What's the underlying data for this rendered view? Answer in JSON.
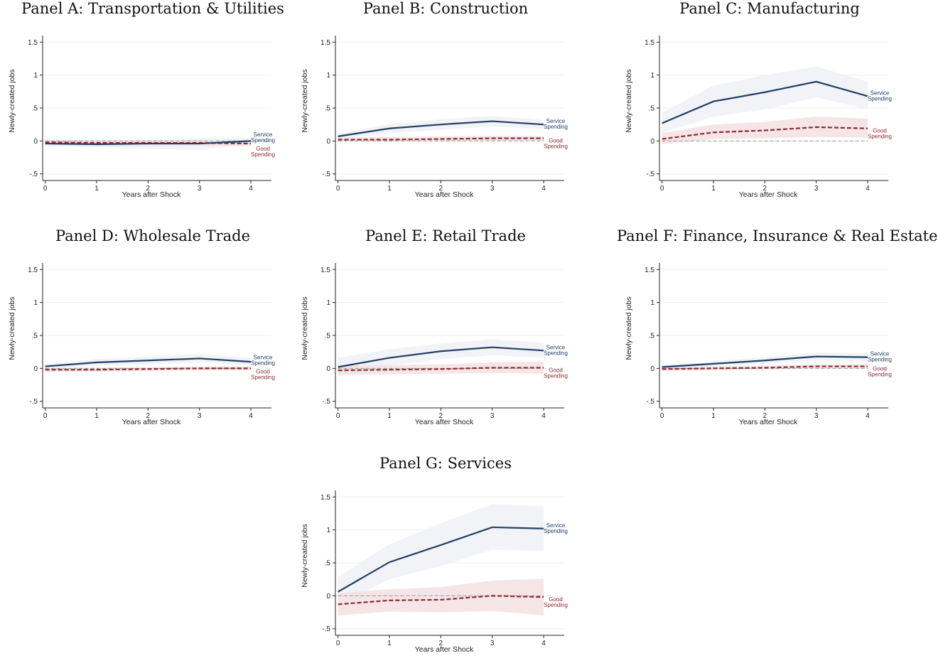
{
  "colors": {
    "service": "#1f3f66",
    "good": "#8c2a33",
    "service_band": "#eef1f5",
    "good_band": "#f3e1e3",
    "grid": "#eeeeee",
    "zero_line": "#999999"
  },
  "chart_data": [
    {
      "type": "line",
      "title": "Panel A: Transportation & Utilities",
      "xlabel": "Years after Shock",
      "ylabel": "Newly-created jobs",
      "x": [
        0,
        1,
        2,
        3,
        4
      ],
      "xticks": [
        "0",
        "1",
        "2",
        "3",
        "4"
      ],
      "yticks": [
        ".5 neg",
        "0",
        ".5",
        "1",
        "1.5"
      ],
      "ytick_labels": [
        "-.5",
        "0",
        ".5",
        "1",
        "1.5"
      ],
      "ylim": [
        -0.6,
        1.6
      ],
      "grid": true,
      "series": [
        {
          "name": "Service Spending",
          "label_lines": [
            "Service",
            "Spending"
          ],
          "style": "solid",
          "values": [
            -0.04,
            -0.05,
            -0.04,
            -0.04,
            0.0
          ],
          "ci_lower": [
            -0.07,
            -0.1,
            -0.12,
            -0.14,
            -0.04
          ],
          "ci_upper": [
            -0.01,
            0.0,
            0.02,
            0.04,
            0.04
          ]
        },
        {
          "name": "Good Spending",
          "label_lines": [
            "Good",
            "Spending"
          ],
          "style": "dashed",
          "values": [
            -0.02,
            -0.03,
            -0.03,
            -0.03,
            -0.04
          ],
          "ci_lower": [
            -0.06,
            -0.07,
            -0.07,
            -0.07,
            -0.08
          ],
          "ci_upper": [
            0.02,
            0.01,
            0.01,
            0.01,
            0.0
          ]
        }
      ]
    },
    {
      "type": "line",
      "title": "Panel B: Construction",
      "xlabel": "Years after Shock",
      "ylabel": "Newly-created jobs",
      "x": [
        0,
        1,
        2,
        3,
        4
      ],
      "xticks": [
        "0",
        "1",
        "2",
        "3",
        "4"
      ],
      "ytick_labels": [
        "-.5",
        "0",
        ".5",
        "1",
        "1.5"
      ],
      "ylim": [
        -0.6,
        1.6
      ],
      "grid": true,
      "series": [
        {
          "name": "Service Spending",
          "label_lines": [
            "Service",
            "Spending"
          ],
          "style": "solid",
          "values": [
            0.07,
            0.19,
            0.25,
            0.3,
            0.25
          ],
          "ci_lower": [
            0.03,
            0.12,
            0.17,
            0.22,
            0.18
          ],
          "ci_upper": [
            0.11,
            0.26,
            0.33,
            0.38,
            0.32
          ]
        },
        {
          "name": "Good Spending",
          "label_lines": [
            "Good",
            "Spending"
          ],
          "style": "dashed",
          "values": [
            0.02,
            0.02,
            0.03,
            0.04,
            0.04
          ],
          "ci_lower": [
            0.0,
            -0.01,
            0.0,
            0.0,
            0.0
          ],
          "ci_upper": [
            0.05,
            0.06,
            0.07,
            0.08,
            0.08
          ]
        }
      ]
    },
    {
      "type": "line",
      "title": "Panel C: Manufacturing",
      "xlabel": "Years after Shock",
      "ylabel": "Newly-created jobs",
      "x": [
        0,
        1,
        2,
        3,
        4
      ],
      "xticks": [
        "0",
        "1",
        "2",
        "3",
        "4"
      ],
      "ytick_labels": [
        "-.5",
        "0",
        ".5",
        "1",
        "1.5"
      ],
      "ylim": [
        -0.6,
        1.6
      ],
      "grid": true,
      "series": [
        {
          "name": "Service Spending",
          "label_lines": [
            "Service",
            "Spending"
          ],
          "style": "solid",
          "values": [
            0.27,
            0.6,
            0.74,
            0.9,
            0.68
          ],
          "ci_lower": [
            0.12,
            0.37,
            0.48,
            0.66,
            0.48
          ],
          "ci_upper": [
            0.43,
            0.84,
            1.0,
            1.13,
            0.9
          ]
        },
        {
          "name": "Good Spending",
          "label_lines": [
            "Good",
            "Spending"
          ],
          "style": "dashed",
          "values": [
            0.03,
            0.13,
            0.16,
            0.21,
            0.19
          ],
          "ci_lower": [
            -0.05,
            0.03,
            0.04,
            0.06,
            0.05
          ],
          "ci_upper": [
            0.12,
            0.25,
            0.29,
            0.37,
            0.34
          ]
        }
      ]
    },
    {
      "type": "line",
      "title": "Panel D: Wholesale Trade",
      "xlabel": "Years after Shock",
      "ylabel": "Newly-created jobs",
      "x": [
        0,
        1,
        2,
        3,
        4
      ],
      "xticks": [
        "0",
        "1",
        "2",
        "3",
        "4"
      ],
      "ytick_labels": [
        "-.5",
        "0",
        ".5",
        "1",
        "1.5"
      ],
      "ylim": [
        -0.6,
        1.6
      ],
      "grid": true,
      "series": [
        {
          "name": "Service Spending",
          "label_lines": [
            "Service",
            "Spending"
          ],
          "style": "solid",
          "values": [
            0.03,
            0.09,
            0.12,
            0.15,
            0.1
          ],
          "ci_lower": [
            0.0,
            0.04,
            0.06,
            0.09,
            0.05
          ],
          "ci_upper": [
            0.06,
            0.14,
            0.18,
            0.22,
            0.16
          ]
        },
        {
          "name": "Good Spending",
          "label_lines": [
            "Good",
            "Spending"
          ],
          "style": "dashed",
          "values": [
            -0.02,
            -0.02,
            -0.01,
            0.0,
            0.0
          ],
          "ci_lower": [
            -0.05,
            -0.05,
            -0.04,
            -0.03,
            -0.03
          ],
          "ci_upper": [
            0.01,
            0.01,
            0.02,
            0.03,
            0.03
          ]
        }
      ]
    },
    {
      "type": "line",
      "title": "Panel E: Retail Trade",
      "xlabel": "Years after Shock",
      "ylabel": "Newly-created jobs",
      "x": [
        0,
        1,
        2,
        3,
        4
      ],
      "xticks": [
        "0",
        "1",
        "2",
        "3",
        "4"
      ],
      "ytick_labels": [
        "-.5",
        "0",
        ".5",
        "1",
        "1.5"
      ],
      "ylim": [
        -0.6,
        1.6
      ],
      "grid": true,
      "series": [
        {
          "name": "Service Spending",
          "label_lines": [
            "Service",
            "Spending"
          ],
          "style": "solid",
          "values": [
            0.02,
            0.16,
            0.26,
            0.32,
            0.27
          ],
          "ci_lower": [
            -0.12,
            0.04,
            0.14,
            0.2,
            0.16
          ],
          "ci_upper": [
            0.16,
            0.29,
            0.38,
            0.44,
            0.39
          ]
        },
        {
          "name": "Good Spending",
          "label_lines": [
            "Good",
            "Spending"
          ],
          "style": "dashed",
          "values": [
            -0.03,
            -0.02,
            -0.01,
            0.01,
            0.01
          ],
          "ci_lower": [
            -0.1,
            -0.09,
            -0.08,
            -0.07,
            -0.08
          ],
          "ci_upper": [
            0.04,
            0.05,
            0.06,
            0.09,
            0.1
          ]
        }
      ]
    },
    {
      "type": "line",
      "title": "Panel F: Finance, Insurance & Real Estate",
      "xlabel": "Years after Shock",
      "ylabel": "Newly-created jobs",
      "x": [
        0,
        1,
        2,
        3,
        4
      ],
      "xticks": [
        "0",
        "1",
        "2",
        "3",
        "4"
      ],
      "ytick_labels": [
        "-.5",
        "0",
        ".5",
        "1",
        "1.5"
      ],
      "ylim": [
        -0.6,
        1.6
      ],
      "grid": true,
      "series": [
        {
          "name": "Service Spending",
          "label_lines": [
            "Service",
            "Spending"
          ],
          "style": "solid",
          "values": [
            0.02,
            0.07,
            0.12,
            0.18,
            0.17
          ],
          "ci_lower": [
            -0.01,
            0.03,
            0.07,
            0.12,
            0.11
          ],
          "ci_upper": [
            0.05,
            0.11,
            0.17,
            0.24,
            0.23
          ]
        },
        {
          "name": "Good Spending",
          "label_lines": [
            "Good",
            "Spending"
          ],
          "style": "dashed",
          "values": [
            -0.01,
            0.0,
            0.01,
            0.03,
            0.03
          ],
          "ci_lower": [
            -0.04,
            -0.03,
            -0.02,
            0.0,
            0.0
          ],
          "ci_upper": [
            0.02,
            0.03,
            0.04,
            0.06,
            0.06
          ]
        }
      ]
    },
    {
      "type": "line",
      "title": "Panel G: Services",
      "xlabel": "Years after Shock",
      "ylabel": "Newly-created jobs",
      "x": [
        0,
        1,
        2,
        3,
        4
      ],
      "xticks": [
        "0",
        "1",
        "2",
        "3",
        "4"
      ],
      "ytick_labels": [
        "-.5",
        "0",
        ".5",
        "1",
        "1.5"
      ],
      "ylim": [
        -0.6,
        1.6
      ],
      "grid": true,
      "series": [
        {
          "name": "Service Spending",
          "label_lines": [
            "Service",
            "Spending"
          ],
          "style": "solid",
          "values": [
            0.06,
            0.51,
            0.77,
            1.04,
            1.02
          ],
          "ci_lower": [
            -0.15,
            0.25,
            0.45,
            0.7,
            0.68
          ],
          "ci_upper": [
            0.28,
            0.78,
            1.1,
            1.39,
            1.36
          ]
        },
        {
          "name": "Good Spending",
          "label_lines": [
            "Good",
            "Spending"
          ],
          "style": "dashed",
          "values": [
            -0.13,
            -0.07,
            -0.06,
            0.0,
            -0.02
          ],
          "ci_lower": [
            -0.3,
            -0.24,
            -0.25,
            -0.23,
            -0.3
          ],
          "ci_upper": [
            0.04,
            0.1,
            0.13,
            0.23,
            0.26
          ]
        }
      ]
    }
  ]
}
